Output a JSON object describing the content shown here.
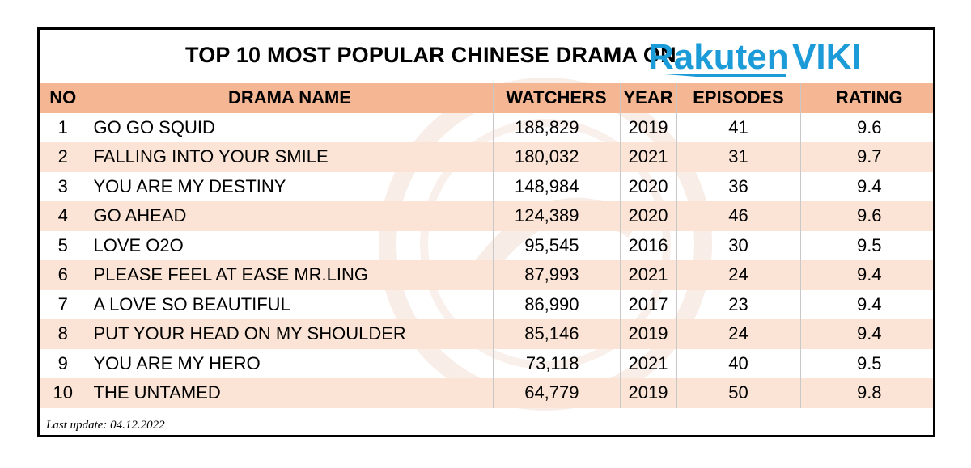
{
  "title": "TOP 10 MOST POPULAR CHINESE DRAMA ON",
  "logo": {
    "part1": "Rakuten",
    "part2": "VIKI",
    "color1": "#1b9bd8",
    "color2": "#1b9bd8"
  },
  "columns": [
    "NO",
    "DRAMA NAME",
    "WATCHERS",
    "YEAR",
    "EPISODES",
    "RATING"
  ],
  "rows": [
    {
      "no": "1",
      "name": "GO GO SQUID",
      "watchers": "188,829",
      "year": "2019",
      "episodes": "41",
      "rating": "9.6"
    },
    {
      "no": "2",
      "name": "FALLING INTO YOUR SMILE",
      "watchers": "180,032",
      "year": "2021",
      "episodes": "31",
      "rating": "9.7"
    },
    {
      "no": "3",
      "name": "YOU ARE MY DESTINY",
      "watchers": "148,984",
      "year": "2020",
      "episodes": "36",
      "rating": "9.4"
    },
    {
      "no": "4",
      "name": "GO AHEAD",
      "watchers": "124,389",
      "year": "2020",
      "episodes": "46",
      "rating": "9.6"
    },
    {
      "no": "5",
      "name": "LOVE O2O",
      "watchers": "95,545",
      "year": "2016",
      "episodes": "30",
      "rating": "9.5"
    },
    {
      "no": "6",
      "name": "PLEASE FEEL AT EASE MR.LING",
      "watchers": "87,993",
      "year": "2021",
      "episodes": "24",
      "rating": "9.4"
    },
    {
      "no": "7",
      "name": "A LOVE SO BEAUTIFUL",
      "watchers": "86,990",
      "year": "2017",
      "episodes": "23",
      "rating": "9.4"
    },
    {
      "no": "8",
      "name": "PUT YOUR HEAD ON MY SHOULDER",
      "watchers": "85,146",
      "year": "2019",
      "episodes": "24",
      "rating": "9.4"
    },
    {
      "no": "9",
      "name": "YOU ARE MY HERO",
      "watchers": "73,118",
      "year": "2021",
      "episodes": "40",
      "rating": "9.5"
    },
    {
      "no": "10",
      "name": "THE UNTAMED",
      "watchers": "64,779",
      "year": "2019",
      "episodes": "50",
      "rating": "9.8"
    }
  ],
  "footer": "Last update: 04.12.2022",
  "colors": {
    "header_bg": "#f5b793",
    "band_bg": "#fbe4d5",
    "border": "#000000"
  }
}
